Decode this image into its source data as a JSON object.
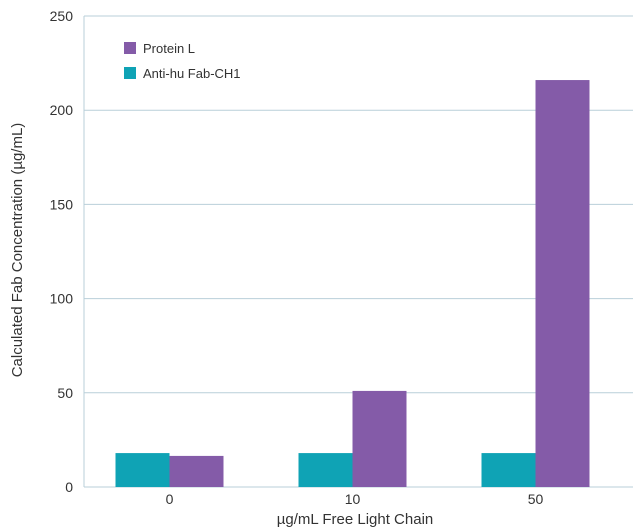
{
  "chart_data": {
    "type": "bar",
    "categories": [
      "0",
      "10",
      "50"
    ],
    "series": [
      {
        "name": "Anti-hu Fab-CH1",
        "color": "#0fa3b5",
        "values": [
          18,
          18,
          18
        ]
      },
      {
        "name": "Protein L",
        "color": "#845ba8",
        "values": [
          16.5,
          51,
          216
        ]
      }
    ],
    "legend_order": [
      "Protein L",
      "Anti-hu Fab-CH1"
    ],
    "xlabel": "µg/mL Free Light Chain",
    "ylabel": "Calculated Fab Concentration (µg/mL)",
    "ylim": [
      0,
      250
    ],
    "yticks": [
      "0",
      "50",
      "100",
      "150",
      "200",
      "250"
    ],
    "grid": true,
    "legend_position": "top-left"
  }
}
